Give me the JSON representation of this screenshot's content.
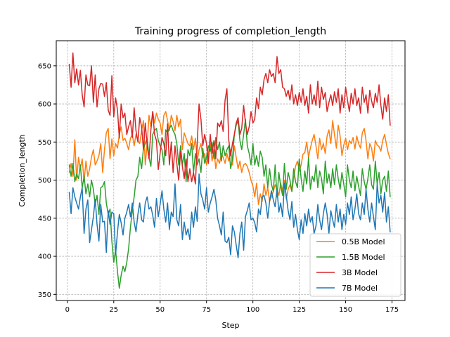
{
  "chart_data": {
    "type": "line",
    "title": "Training progress of completion_length",
    "xlabel": "Step",
    "ylabel": "Completion_length",
    "xlim": [
      -6,
      182
    ],
    "ylim": [
      342,
      683
    ],
    "xticks": [
      0,
      25,
      50,
      75,
      100,
      125,
      150,
      175
    ],
    "yticks": [
      350,
      400,
      450,
      500,
      550,
      600,
      650
    ],
    "grid": true,
    "legend_position": "lower-right",
    "x": [
      1,
      2,
      3,
      4,
      5,
      6,
      7,
      8,
      9,
      10,
      11,
      12,
      13,
      14,
      15,
      16,
      17,
      18,
      19,
      20,
      21,
      22,
      23,
      24,
      25,
      26,
      27,
      28,
      29,
      30,
      31,
      32,
      33,
      34,
      35,
      36,
      37,
      38,
      39,
      40,
      41,
      42,
      43,
      44,
      45,
      46,
      47,
      48,
      49,
      50,
      51,
      52,
      53,
      54,
      55,
      56,
      57,
      58,
      59,
      60,
      61,
      62,
      63,
      64,
      65,
      66,
      67,
      68,
      69,
      70,
      71,
      72,
      73,
      74,
      75,
      76,
      77,
      78,
      79,
      80,
      81,
      82,
      83,
      84,
      85,
      86,
      87,
      88,
      89,
      90,
      91,
      92,
      93,
      94,
      95,
      96,
      97,
      98,
      99,
      100,
      101,
      102,
      103,
      104,
      105,
      106,
      107,
      108,
      109,
      110,
      111,
      112,
      113,
      114,
      115,
      116,
      117,
      118,
      119,
      120,
      121,
      122,
      123,
      124,
      125,
      126,
      127,
      128,
      129,
      130,
      131,
      132,
      133,
      134,
      135,
      136,
      137,
      138,
      139,
      140,
      141,
      142,
      143,
      144,
      145,
      146,
      147,
      148,
      149,
      150,
      151,
      152,
      153,
      154,
      155,
      156,
      157,
      158,
      159,
      160,
      161,
      162,
      163,
      164,
      165,
      166,
      167,
      168,
      169,
      170,
      171,
      172,
      173,
      174
    ],
    "series": [
      {
        "name": "0.5B Model",
        "color": "#ff7f0e",
        "values": [
          510,
          522,
          505,
          553,
          500,
          530,
          515,
          528,
          498,
          525,
          505,
          515,
          530,
          540,
          520,
          525,
          532,
          548,
          510,
          540,
          562,
          568,
          528,
          554,
          532,
          548,
          542,
          560,
          570,
          552,
          555,
          548,
          540,
          555,
          560,
          545,
          560,
          552,
          548,
          565,
          578,
          520,
          548,
          585,
          570,
          590,
          575,
          588,
          580,
          575,
          560,
          585,
          590,
          578,
          565,
          585,
          577,
          565,
          585,
          570,
          580,
          540,
          562,
          555,
          548,
          545,
          558,
          540,
          555,
          525,
          540,
          548,
          530,
          535,
          520,
          535,
          548,
          525,
          540,
          515,
          528,
          522,
          535,
          530,
          522,
          535,
          525,
          540,
          520,
          545,
          530,
          515,
          525,
          510,
          520,
          522,
          518,
          510,
          500,
          492,
          478,
          496,
          468,
          482,
          472,
          495,
          480,
          490,
          472,
          478,
          485,
          494,
          488,
          480,
          496,
          486,
          500,
          475,
          488,
          494,
          485,
          502,
          518,
          525,
          512,
          520,
          534,
          536,
          550,
          530,
          542,
          552,
          560,
          545,
          528,
          555,
          540,
          548,
          535,
          558,
          566,
          548,
          578,
          560,
          542,
          572,
          558,
          532,
          546,
          555,
          540,
          552,
          548,
          556,
          541,
          558,
          548,
          542,
          562,
          568,
          552,
          528,
          548,
          542,
          525,
          552,
          546,
          544,
          538,
          552,
          560,
          547,
          535,
          528
        ]
      },
      {
        "name": "1.5B Model",
        "color": "#2ca02c",
        "values": [
          520,
          505,
          522,
          498,
          508,
          502,
          520,
          490,
          505,
          482,
          495,
          478,
          500,
          488,
          468,
          480,
          455,
          490,
          492,
          498,
          470,
          455,
          462,
          420,
          392,
          408,
          380,
          358,
          375,
          387,
          380,
          392,
          410,
          438,
          460,
          478,
          500,
          505,
          530,
          515,
          542,
          548,
          555,
          530,
          518,
          560,
          565,
          568,
          552,
          545,
          540,
          520,
          566,
          562,
          568,
          572,
          565,
          560,
          548,
          520,
          545,
          520,
          535,
          498,
          540,
          532,
          548,
          510,
          535,
          520,
          528,
          510,
          542,
          522,
          530,
          545,
          538,
          550,
          528,
          556,
          540,
          550,
          525,
          545,
          532,
          540,
          545,
          515,
          528,
          560,
          572,
          578,
          552,
          540,
          560,
          580,
          545,
          535,
          520,
          548,
          520,
          532,
          518,
          538,
          530,
          505,
          520,
          490,
          515,
          495,
          485,
          520,
          478,
          510,
          492,
          480,
          522,
          488,
          510,
          500,
          485,
          515,
          498,
          490,
          528,
          502,
          485,
          512,
          495,
          530,
          488,
          505,
          498,
          520,
          490,
          512,
          502,
          482,
          525,
          496,
          508,
          490,
          515,
          494,
          520,
          502,
          488,
          510,
          495,
          478,
          520,
          500,
          490,
          512,
          486,
          505,
          492,
          480,
          515,
          498,
          488,
          502,
          520,
          494,
          488,
          525,
          495,
          510,
          482,
          500,
          505,
          485,
          512,
          478
        ]
      },
      {
        "name": "3B Model",
        "color": "#d62728",
        "values": [
          652,
          622,
          667,
          628,
          646,
          625,
          644,
          612,
          596,
          638,
          625,
          624,
          650,
          602,
          638,
          596,
          620,
          627,
          626,
          610,
          628,
          592,
          585,
          637,
          583,
          608,
          592,
          555,
          600,
          582,
          588,
          560,
          570,
          578,
          556,
          595,
          565,
          550,
          582,
          570,
          540,
          575,
          545,
          528,
          566,
          590,
          560,
          552,
          514,
          535,
          556,
          548,
          532,
          574,
          520,
          550,
          510,
          545,
          522,
          500,
          538,
          518,
          502,
          528,
          498,
          515,
          498,
          510,
          495,
          548,
          600,
          580,
          545,
          560,
          548,
          522,
          560,
          535,
          552,
          528,
          575,
          570,
          578,
          564,
          605,
          620,
          552,
          532,
          548,
          560,
          575,
          582,
          560,
          568,
          598,
          575,
          560,
          570,
          590,
          575,
          580,
          608,
          594,
          622,
          612,
          632,
          640,
          628,
          645,
          636,
          640,
          628,
          662,
          640,
          645,
          622,
          620,
          610,
          618,
          605,
          625,
          600,
          612,
          598,
          615,
          602,
          620,
          598,
          610,
          588,
          625,
          600,
          612,
          598,
          630,
          595,
          622,
          606,
          615,
          590,
          602,
          612,
          598,
          616,
          602,
          620,
          588,
          612,
          595,
          622,
          605,
          590,
          614,
          600,
          620,
          598,
          608,
          588,
          622,
          602,
          612,
          588,
          618,
          604,
          595,
          614,
          602,
          625,
          598,
          580,
          608,
          590,
          612,
          572
        ]
      },
      {
        "name": "7B Model",
        "color": "#1f77b4",
        "values": [
          484,
          456,
          490,
          478,
          470,
          462,
          478,
          490,
          430,
          462,
          474,
          418,
          435,
          452,
          475,
          442,
          420,
          468,
          445,
          446,
          405,
          460,
          442,
          458,
          456,
          402,
          432,
          455,
          444,
          428,
          450,
          458,
          468,
          452,
          470,
          445,
          432,
          455,
          470,
          448,
          445,
          470,
          478,
          462,
          465,
          454,
          438,
          476,
          452,
          468,
          486,
          462,
          445,
          470,
          435,
          458,
          452,
          495,
          448,
          440,
          468,
          422,
          445,
          428,
          436,
          422,
          458,
          438,
          465,
          446,
          508,
          482,
          474,
          462,
          490,
          458,
          470,
          478,
          488,
          474,
          450,
          440,
          428,
          458,
          420,
          418,
          425,
          402,
          440,
          432,
          415,
          398,
          430,
          445,
          408,
          452,
          460,
          470,
          448,
          450,
          444,
          432,
          462,
          455,
          478,
          480,
          470,
          450,
          472,
          486,
          474,
          465,
          488,
          458,
          470,
          452,
          496,
          480,
          460,
          448,
          472,
          438,
          455,
          435,
          422,
          448,
          430,
          456,
          440,
          462,
          445,
          452,
          430,
          440,
          468,
          448,
          435,
          456,
          470,
          455,
          430,
          460,
          448,
          438,
          468,
          445,
          462,
          435,
          455,
          442,
          470,
          455,
          478,
          448,
          462,
          482,
          456,
          448,
          470,
          455,
          488,
          462,
          445,
          470,
          452,
          435,
          495,
          470,
          480,
          458,
          484,
          445,
          465,
          432
        ]
      }
    ]
  }
}
